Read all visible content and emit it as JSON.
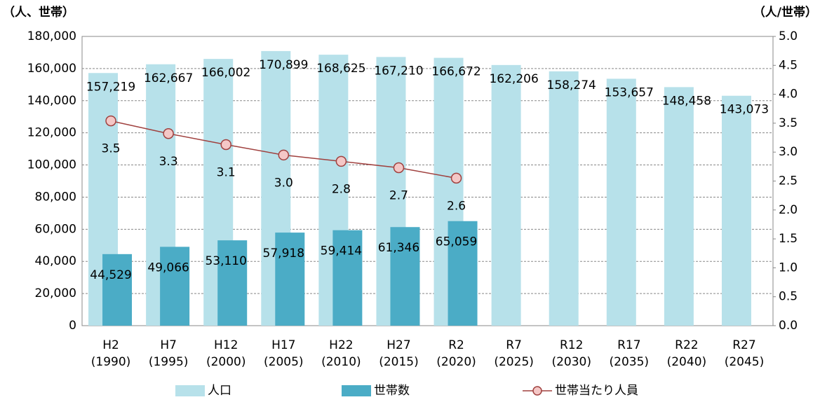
{
  "chart_data": {
    "type": "bar",
    "y_label": "（人、世帯）",
    "y2_label": "（人/世帯）",
    "categories": [
      [
        "H2",
        "(1990)"
      ],
      [
        "H7",
        "(1995)"
      ],
      [
        "H12",
        "(2000)"
      ],
      [
        "H17",
        "(2005)"
      ],
      [
        "H22",
        "(2010)"
      ],
      [
        "H27",
        "(2015)"
      ],
      [
        "R2",
        "(2020)"
      ],
      [
        "R7",
        "(2025)"
      ],
      [
        "R12",
        "(2030)"
      ],
      [
        "R17",
        "(2035)"
      ],
      [
        "R22",
        "(2040)"
      ],
      [
        "R27",
        "(2045)"
      ]
    ],
    "series": [
      {
        "name": "人口",
        "type": "bar",
        "color": "#b7e1ea",
        "values": [
          157219,
          162667,
          166002,
          170899,
          168625,
          167210,
          166672,
          162206,
          158274,
          153657,
          148458,
          143073
        ],
        "value_labels": [
          "157,219",
          "162,667",
          "166,002",
          "170,899",
          "168,625",
          "167,210",
          "166,672",
          "162,206",
          "158,274",
          "153,657",
          "148,458",
          "143,073"
        ]
      },
      {
        "name": "世帯数",
        "type": "bar",
        "color": "#4bacc6",
        "values": [
          44529,
          49066,
          53110,
          57918,
          59414,
          61346,
          65059,
          null,
          null,
          null,
          null,
          null
        ],
        "value_labels": [
          "44,529",
          "49,066",
          "53,110",
          "57,918",
          "59,414",
          "61,346",
          "65,059",
          null,
          null,
          null,
          null,
          null
        ]
      },
      {
        "name": "世帯当たり人員",
        "type": "line",
        "axis": "y2",
        "color": "#a0413f",
        "marker_fill": "#f4c7c6",
        "values": [
          3.54,
          3.32,
          3.13,
          2.95,
          2.84,
          2.73,
          2.55,
          null,
          null,
          null,
          null,
          null
        ],
        "value_labels": [
          "3.5",
          "3.3",
          "3.1",
          "3.0",
          "2.8",
          "2.7",
          "2.6",
          null,
          null,
          null,
          null,
          null
        ]
      }
    ],
    "ylim": [
      0,
      180000
    ],
    "yticks": [
      0,
      {
        "value": 20000,
        "label": "20,000"
      },
      {
        "value": 40000,
        "label": "40,000"
      },
      {
        "value": 60000,
        "label": "60,000"
      },
      {
        "value": 80000,
        "label": "80,000"
      },
      {
        "value": 100000,
        "label": "100,000"
      },
      {
        "value": 120000,
        "label": "120,000"
      },
      {
        "value": 140000,
        "label": "140,000"
      },
      {
        "value": 160000,
        "label": "160,000"
      },
      {
        "value": 180000,
        "label": "180,000"
      }
    ],
    "y2lim": [
      0,
      5
    ],
    "y2ticks": [
      {
        "value": 0,
        "label": "0.0"
      },
      0.5,
      {
        "value": 1,
        "label": "1.0"
      },
      1.5,
      {
        "value": 2,
        "label": "2.0"
      },
      2.5,
      {
        "value": 3,
        "label": "3.0"
      },
      3.5,
      {
        "value": 4,
        "label": "4.0"
      },
      4.5,
      {
        "value": 5,
        "label": "5.0"
      }
    ],
    "grid": true,
    "legend": "bottom"
  }
}
